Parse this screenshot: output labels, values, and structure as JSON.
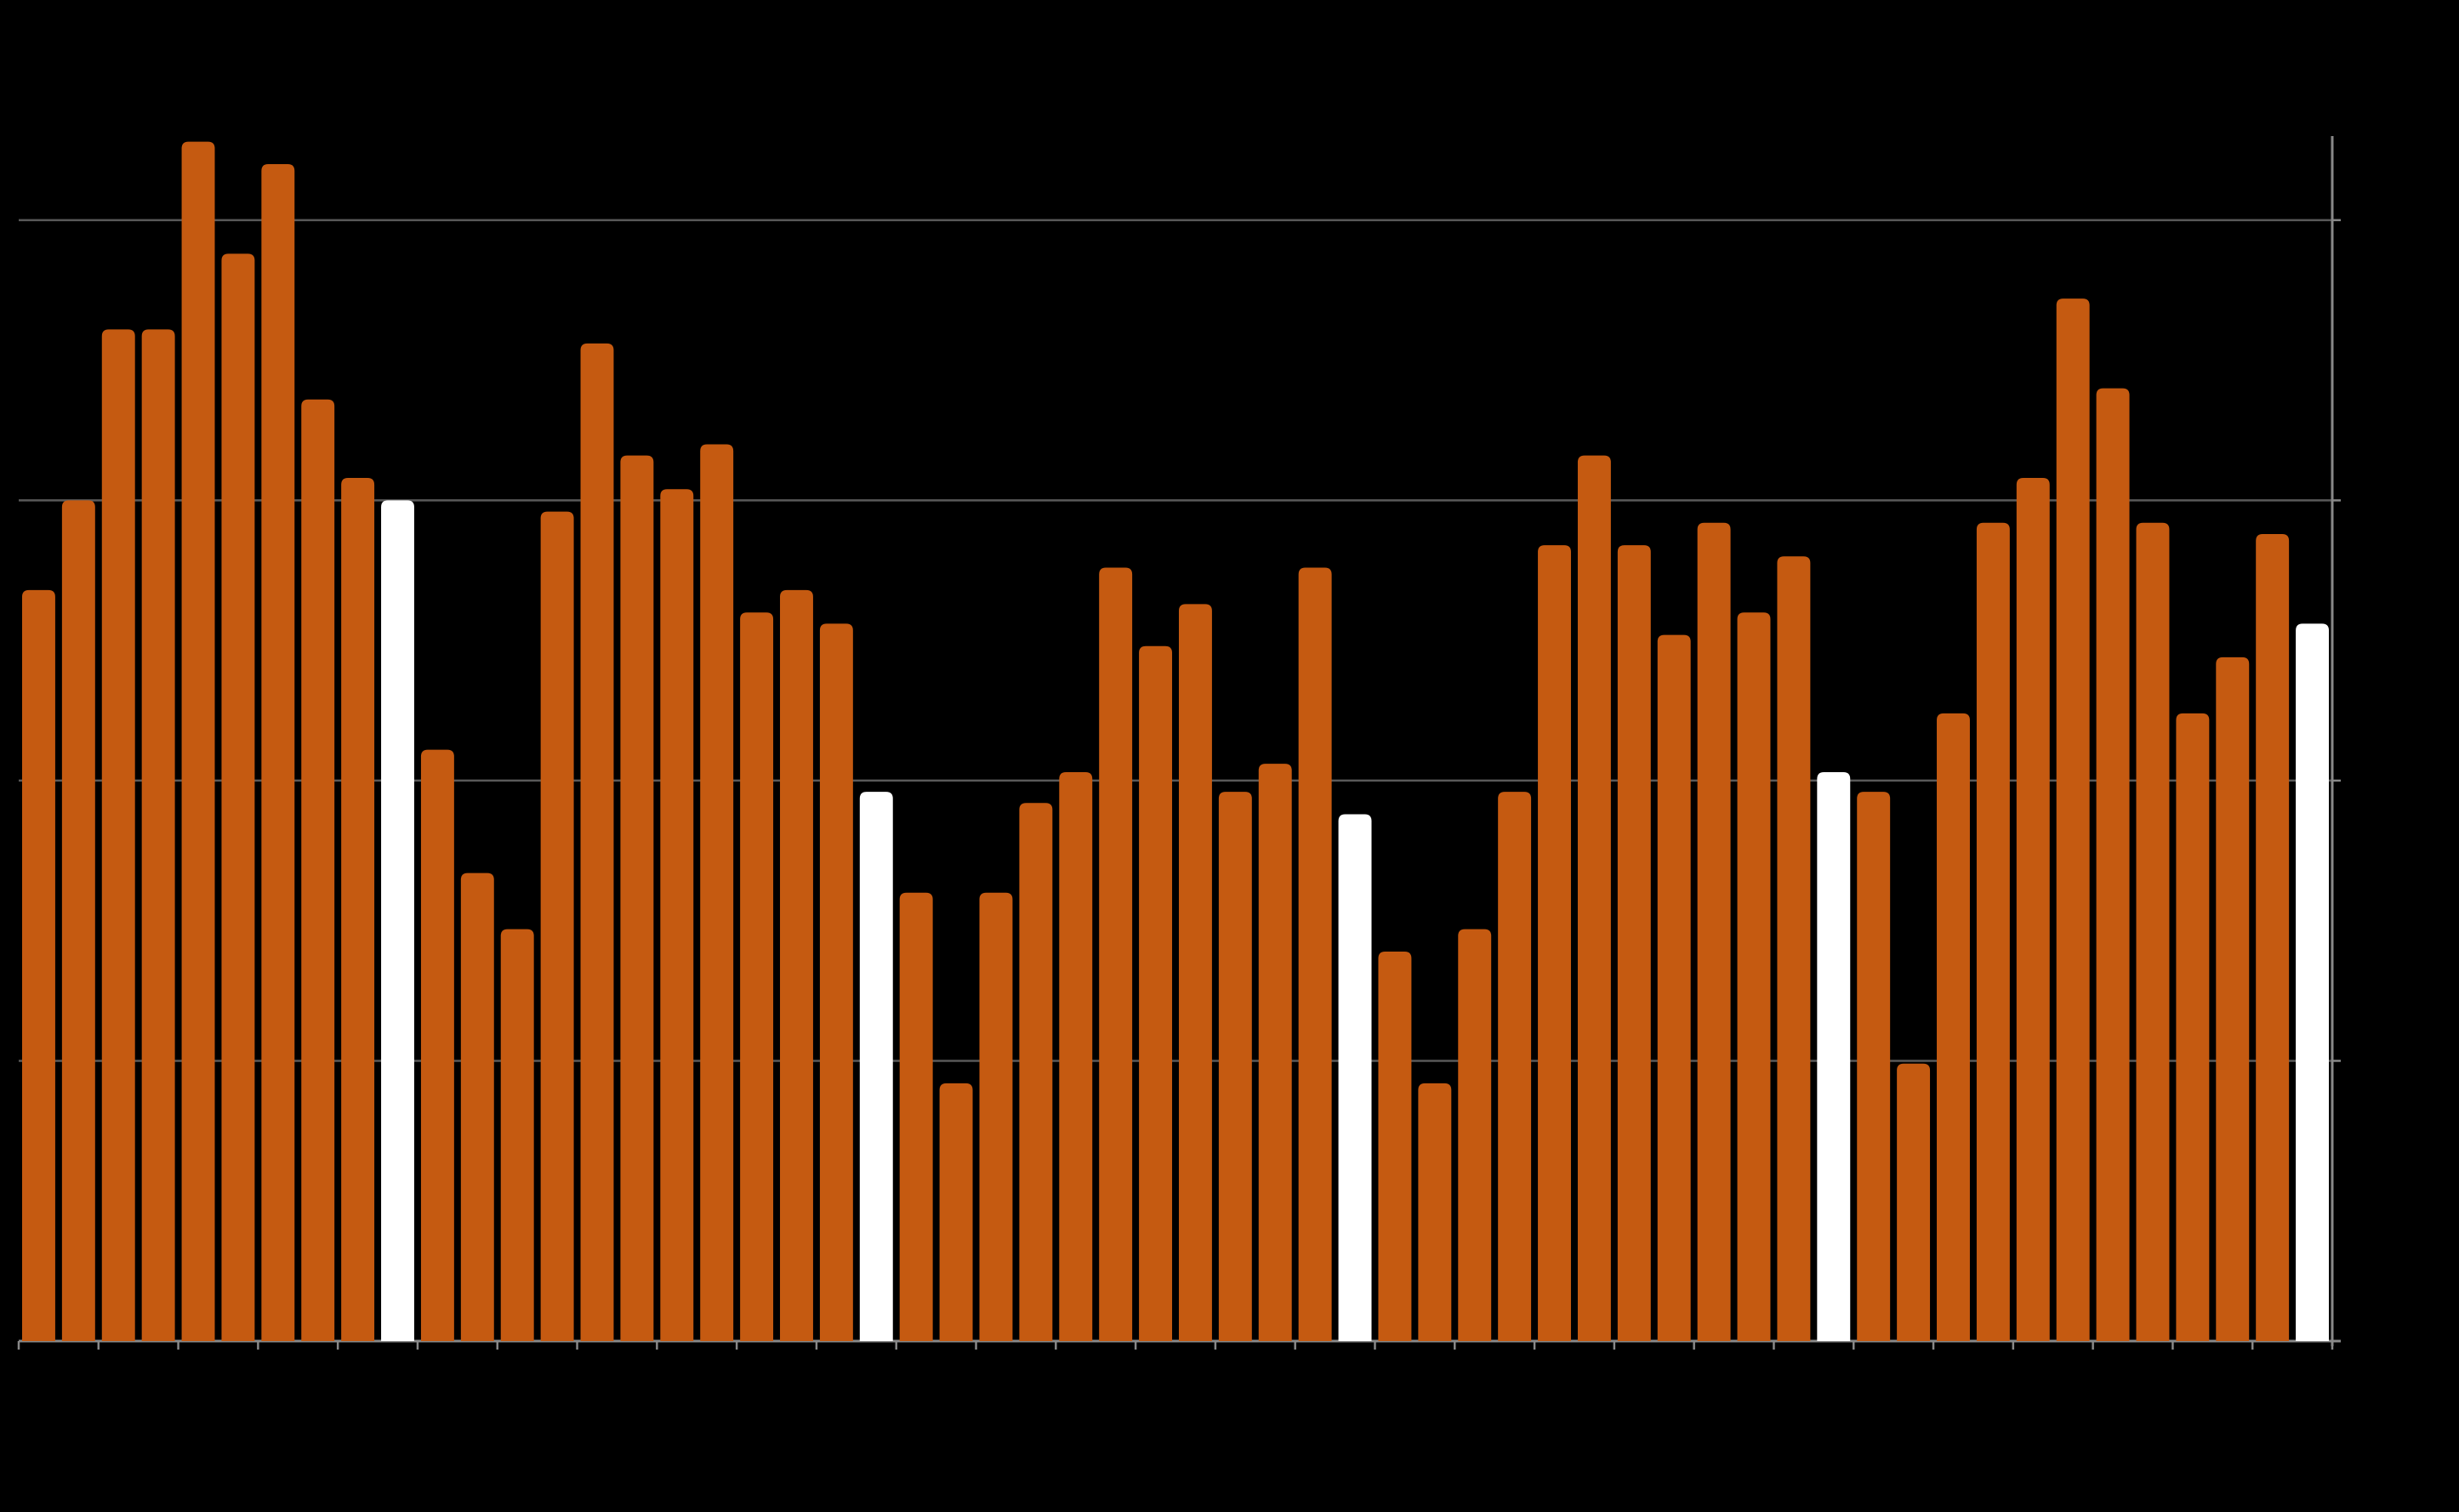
{
  "chart_data": {
    "type": "bar",
    "values": [
      2.68,
      3.0,
      3.61,
      3.61,
      4.28,
      3.88,
      4.2,
      3.36,
      3.08,
      3.0,
      2.11,
      1.67,
      1.47,
      2.96,
      3.56,
      3.16,
      3.04,
      3.2,
      2.6,
      2.68,
      2.56,
      1.96,
      1.6,
      0.92,
      1.6,
      1.92,
      2.03,
      2.76,
      2.48,
      2.63,
      1.96,
      2.06,
      2.76,
      1.88,
      1.39,
      0.92,
      1.47,
      1.96,
      2.84,
      3.16,
      2.84,
      2.52,
      2.92,
      2.6,
      2.8,
      2.03,
      1.96,
      0.99,
      2.24,
      2.92,
      3.08,
      3.72,
      3.4,
      2.92,
      2.24,
      2.44,
      2.88,
      2.56
    ],
    "colors": [
      "#c55a11",
      "#c55a11",
      "#c55a11",
      "#c55a11",
      "#c55a11",
      "#c55a11",
      "#c55a11",
      "#c55a11",
      "#c55a11",
      "#ffffff",
      "#c55a11",
      "#c55a11",
      "#c55a11",
      "#c55a11",
      "#c55a11",
      "#c55a11",
      "#c55a11",
      "#c55a11",
      "#c55a11",
      "#c55a11",
      "#c55a11",
      "#ffffff",
      "#c55a11",
      "#c55a11",
      "#c55a11",
      "#c55a11",
      "#c55a11",
      "#c55a11",
      "#c55a11",
      "#c55a11",
      "#c55a11",
      "#c55a11",
      "#c55a11",
      "#ffffff",
      "#c55a11",
      "#c55a11",
      "#c55a11",
      "#c55a11",
      "#c55a11",
      "#c55a11",
      "#c55a11",
      "#c55a11",
      "#c55a11",
      "#c55a11",
      "#c55a11",
      "#ffffff",
      "#c55a11",
      "#c55a11",
      "#c55a11",
      "#c55a11",
      "#c55a11",
      "#c55a11",
      "#c55a11",
      "#c55a11",
      "#c55a11",
      "#c55a11",
      "#c55a11",
      "#ffffff"
    ],
    "ylim": [
      0,
      4.3
    ],
    "yticks": [
      0,
      1,
      2,
      3,
      4
    ],
    "grid": true
  }
}
